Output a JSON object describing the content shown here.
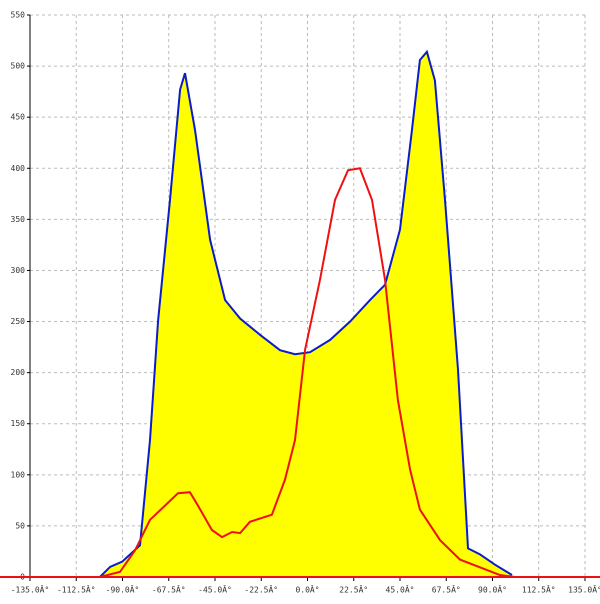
{
  "chart_data": {
    "type": "area",
    "xlim": [
      -135,
      135
    ],
    "ylim": [
      0,
      550
    ],
    "xticks": [
      {
        "value": -135,
        "label": "-135.0Â°"
      },
      {
        "value": -112.5,
        "label": "-112.5Â°"
      },
      {
        "value": -90,
        "label": "-90.0Â°"
      },
      {
        "value": -67.5,
        "label": "-67.5Â°"
      },
      {
        "value": -45,
        "label": "-45.0Â°"
      },
      {
        "value": -22.5,
        "label": "-22.5Â°"
      },
      {
        "value": 0,
        "label": "0.0Â°"
      },
      {
        "value": 22.5,
        "label": "22.5Â°"
      },
      {
        "value": 45,
        "label": "45.0Â°"
      },
      {
        "value": 67.5,
        "label": "67.5Â°"
      },
      {
        "value": 90,
        "label": "90.0Â°"
      },
      {
        "value": 112.5,
        "label": "112.5Â°"
      },
      {
        "value": 135,
        "label": "135.0Â°"
      }
    ],
    "yticks": [
      0,
      50,
      100,
      150,
      200,
      250,
      300,
      350,
      400,
      450,
      500,
      550
    ],
    "grid": true,
    "series": [
      {
        "color": "#0a1ccc",
        "fill": "#ffff00",
        "x": [
          -101,
          -96,
          -90.2,
          -81.5,
          -76.6,
          -72.7,
          -66.9,
          -62,
          -59.6,
          -54.7,
          -47.4,
          -40.1,
          -32.8,
          -23.1,
          -13.4,
          -6.1,
          1.2,
          11,
          20.7,
          30.4,
          37.7,
          45,
          50.8,
          54.7,
          58.1,
          62,
          66.9,
          73.2,
          78.1,
          84,
          91.2,
          99.5
        ],
        "values": [
          0,
          10,
          15,
          31,
          134,
          251,
          369,
          477,
          493,
          437,
          330,
          271,
          253,
          237,
          222,
          218,
          220,
          232,
          250,
          271,
          286,
          340,
          437,
          506,
          514,
          486,
          369,
          203,
          28,
          22,
          12,
          2
        ]
      },
      {
        "color": "#ee1111",
        "x": [
          -101,
          -91.2,
          -83.9,
          -76.6,
          -69.3,
          -63,
          -57.2,
          -53.3,
          -46.5,
          -41.6,
          -36.7,
          -32.8,
          -28,
          -17.3,
          -11,
          -6.1,
          -1.2,
          6.1,
          13.4,
          19.7,
          25.5,
          31.4,
          37.7,
          44,
          49.9,
          54.7,
          64.5,
          74.2,
          93.6,
          101
        ],
        "values": [
          0,
          5,
          26,
          56,
          70,
          82,
          83,
          70,
          46,
          39,
          44,
          43,
          54,
          61,
          95,
          134,
          222,
          291,
          369,
          398,
          400,
          369,
          291,
          173,
          105,
          66,
          36,
          17,
          2,
          0
        ]
      }
    ]
  }
}
